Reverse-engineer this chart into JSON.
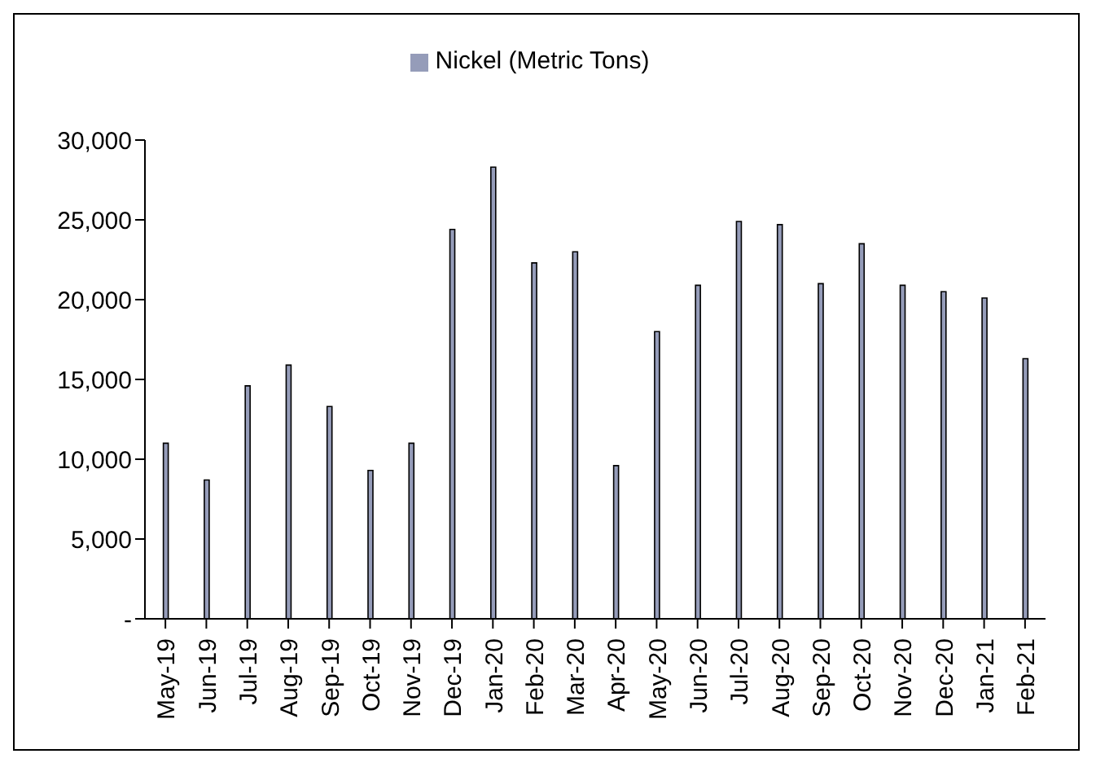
{
  "chart_data": {
    "type": "bar",
    "categories": [
      "May-19",
      "Jun-19",
      "Jul-19",
      "Aug-19",
      "Sep-19",
      "Oct-19",
      "Nov-19",
      "Dec-19",
      "Jan-20",
      "Feb-20",
      "Mar-20",
      "Apr-20",
      "May-20",
      "Jun-20",
      "Jul-20",
      "Aug-20",
      "Sep-20",
      "Oct-20",
      "Nov-20",
      "Dec-20",
      "Jan-21",
      "Feb-21"
    ],
    "series": [
      {
        "name": "Nickel (Metric Tons)",
        "color": "#959cb9",
        "values": [
          11000,
          8700,
          14600,
          15900,
          13300,
          9300,
          11000,
          24400,
          28300,
          22300,
          23000,
          9600,
          18000,
          20900,
          24900,
          24700,
          21000,
          23500,
          20900,
          20500,
          20100,
          16300
        ]
      }
    ],
    "ylim": [
      0,
      30000
    ],
    "yticks": [
      {
        "value": 0,
        "label": "-"
      },
      {
        "value": 5000,
        "label": "5,000"
      },
      {
        "value": 10000,
        "label": "10,000"
      },
      {
        "value": 15000,
        "label": "15,000"
      },
      {
        "value": 20000,
        "label": "20,000"
      },
      {
        "value": 25000,
        "label": "25,000"
      },
      {
        "value": 30000,
        "label": "30,000"
      }
    ],
    "grid": false,
    "legend": "top"
  }
}
